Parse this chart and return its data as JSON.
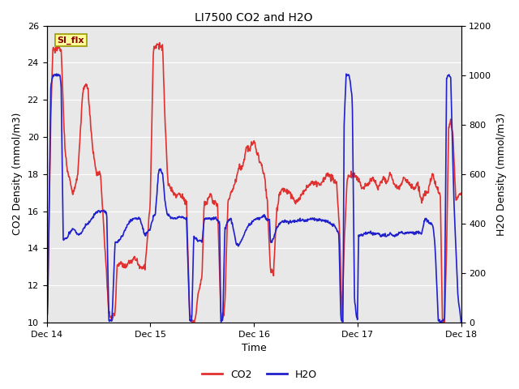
{
  "title": "LI7500 CO2 and H2O",
  "xlabel": "Time",
  "ylabel_left": "CO2 Density (mmol/m3)",
  "ylabel_right": "H2O Density (mmol/m3)",
  "ylim_left": [
    10,
    26
  ],
  "ylim_right": [
    0,
    1200
  ],
  "yticks_left": [
    10,
    12,
    14,
    16,
    18,
    20,
    22,
    24,
    26
  ],
  "yticks_right": [
    0,
    200,
    400,
    600,
    800,
    1000,
    1200
  ],
  "xtick_labels": [
    "Dec 14",
    "Dec 15",
    "Dec 16",
    "Dec 17",
    "Dec 18"
  ],
  "co2_color": "#e03030",
  "h2o_color": "#2020cc",
  "legend_label_co2": "CO2",
  "legend_label_h2o": "H2O",
  "annotation_text": "SI_flx",
  "annotation_bg": "#ffff99",
  "annotation_border": "#999900",
  "bg_color": "#e8e8e8",
  "grid_color": "#ffffff",
  "line_width": 1.2,
  "figsize": [
    6.4,
    4.8
  ],
  "dpi": 100
}
